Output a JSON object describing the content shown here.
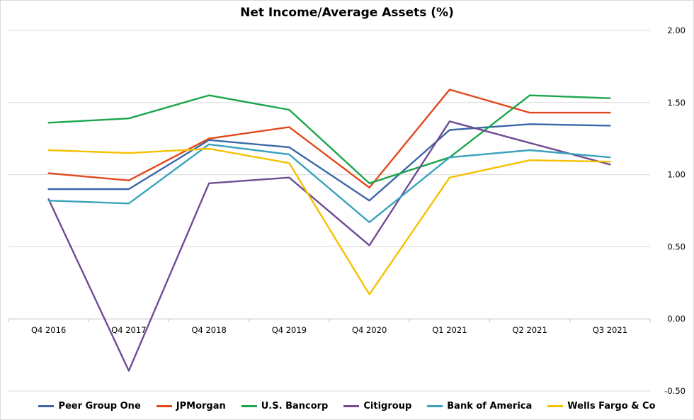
{
  "chart_data": {
    "type": "line",
    "title": "Net Income/Average Assets (%)",
    "xlabel": "",
    "ylabel": "",
    "categories": [
      "Q4 2016",
      "Q4 2017",
      "Q4 2018",
      "Q4 2019",
      "Q4 2020",
      "Q1 2021",
      "Q2 2021",
      "Q3 2021"
    ],
    "ylim": [
      -0.5,
      2.0
    ],
    "y_ticks": [
      "2.00",
      "1.50",
      "1.00",
      "0.50",
      "0.00",
      "-0.50"
    ],
    "y_axis_side": "right",
    "grid": true,
    "legend_position": "bottom",
    "series": [
      {
        "name": "Peer Group One",
        "color": "#3a68a8",
        "values": [
          0.9,
          0.9,
          1.24,
          1.19,
          0.82,
          1.31,
          1.35,
          1.34
        ]
      },
      {
        "name": "JPMorgan",
        "color": "#e2481b",
        "values": [
          1.01,
          0.96,
          1.25,
          1.33,
          0.91,
          1.59,
          1.43,
          1.43
        ]
      },
      {
        "name": "U.S. Bancorp",
        "color": "#1aa64a",
        "values": [
          1.36,
          1.39,
          1.55,
          1.45,
          0.94,
          1.12,
          1.55,
          1.53
        ]
      },
      {
        "name": "Citigroup",
        "color": "#6e4c93",
        "values": [
          0.83,
          -0.36,
          0.94,
          0.98,
          0.51,
          1.37,
          1.22,
          1.07
        ]
      },
      {
        "name": "Bank of America",
        "color": "#3aa2bd",
        "values": [
          0.82,
          0.8,
          1.21,
          1.14,
          0.67,
          1.12,
          1.17,
          1.12
        ]
      },
      {
        "name": "Wells Fargo & Co",
        "color": "#f5c000",
        "values": [
          1.17,
          1.15,
          1.18,
          1.08,
          0.17,
          0.98,
          1.1,
          1.09
        ]
      }
    ]
  }
}
